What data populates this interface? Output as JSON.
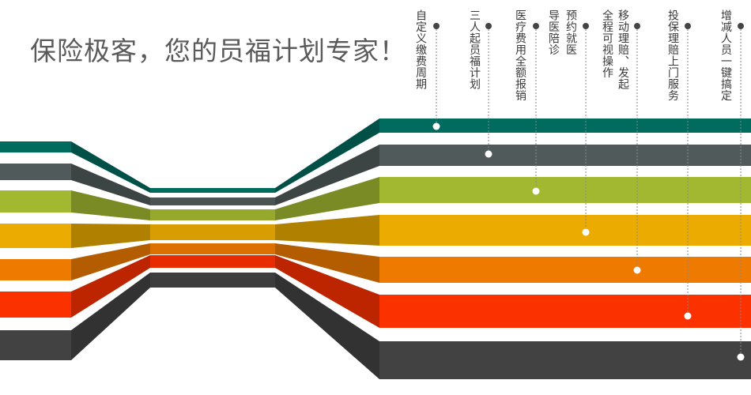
{
  "headline": "保险极客，您的员福计划专家！",
  "colors": {
    "teal": "#006b5f",
    "gray": "#515a5a",
    "olive": "#a3b831",
    "gold": "#ebab00",
    "orange": "#ee7a00",
    "red": "#fb3100",
    "charcoal": "#424242"
  },
  "features": [
    {
      "lines": [
        "自定义缴费周期"
      ]
    },
    {
      "lines": [
        "三人起员福计划"
      ]
    },
    {
      "lines": [
        "医疗费用全额报销"
      ]
    },
    {
      "lines": [
        "导医陪诊",
        "预约就医"
      ]
    },
    {
      "lines": [
        "全程可视操作",
        "移动理赔、发起"
      ]
    },
    {
      "lines": [
        "投保理赔上门服务"
      ]
    },
    {
      "lines": [
        "增减人员一键搞定"
      ]
    }
  ]
}
